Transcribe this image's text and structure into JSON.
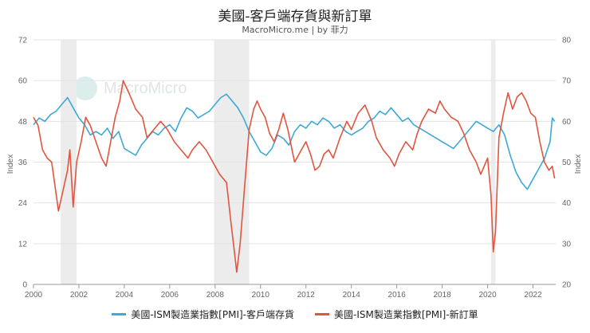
{
  "title": "美國-客戶端存貨與新訂單",
  "subtitle": "MacroMicro.me | by 菲力",
  "watermark": "MacroMicro",
  "chart_data": {
    "type": "line",
    "title": "美國-客戶端存貨與新訂單",
    "ylabel_left": "Index",
    "ylabel_right": "Index",
    "x_range": [
      2000,
      2023
    ],
    "x_ticks": [
      "2000",
      "2002",
      "2004",
      "2006",
      "2008",
      "2010",
      "2012",
      "2014",
      "2016",
      "2018",
      "2020",
      "2022"
    ],
    "y_left_range": [
      0,
      72
    ],
    "y_left_ticks": [
      0,
      12,
      24,
      36,
      48,
      60,
      72
    ],
    "y_right_range": [
      20,
      80
    ],
    "y_right_ticks": [
      20,
      30,
      40,
      50,
      60,
      70,
      80
    ],
    "grid": true,
    "legend_position": "bottom",
    "recession_bands": [
      [
        2001.2,
        2001.9
      ],
      [
        2007.95,
        2009.5
      ],
      [
        2020.15,
        2020.35
      ]
    ],
    "series": [
      {
        "name": "美國-ISM製造業指數[PMI]-客戶端存貨",
        "axis": "left",
        "color": "#3da9d6",
        "points": [
          [
            2000.0,
            47
          ],
          [
            2000.25,
            49
          ],
          [
            2000.5,
            48
          ],
          [
            2000.75,
            50
          ],
          [
            2001.0,
            51
          ],
          [
            2001.25,
            53
          ],
          [
            2001.5,
            55
          ],
          [
            2001.75,
            52
          ],
          [
            2002.0,
            49
          ],
          [
            2002.25,
            47
          ],
          [
            2002.5,
            44
          ],
          [
            2002.75,
            45
          ],
          [
            2003.0,
            44
          ],
          [
            2003.25,
            46
          ],
          [
            2003.5,
            43
          ],
          [
            2003.75,
            45
          ],
          [
            2004.0,
            40
          ],
          [
            2004.25,
            39
          ],
          [
            2004.5,
            38
          ],
          [
            2004.75,
            41
          ],
          [
            2005.0,
            43
          ],
          [
            2005.25,
            45
          ],
          [
            2005.5,
            44
          ],
          [
            2005.75,
            46
          ],
          [
            2006.0,
            47
          ],
          [
            2006.25,
            45
          ],
          [
            2006.5,
            49
          ],
          [
            2006.75,
            52
          ],
          [
            2007.0,
            51
          ],
          [
            2007.25,
            49
          ],
          [
            2007.5,
            50
          ],
          [
            2007.75,
            51
          ],
          [
            2008.0,
            53
          ],
          [
            2008.25,
            55
          ],
          [
            2008.5,
            56
          ],
          [
            2008.75,
            54
          ],
          [
            2009.0,
            52
          ],
          [
            2009.25,
            49
          ],
          [
            2009.5,
            45
          ],
          [
            2009.75,
            42
          ],
          [
            2010.0,
            39
          ],
          [
            2010.25,
            38
          ],
          [
            2010.5,
            40
          ],
          [
            2010.75,
            44
          ],
          [
            2011.0,
            43
          ],
          [
            2011.25,
            41
          ],
          [
            2011.5,
            45
          ],
          [
            2011.75,
            47
          ],
          [
            2012.0,
            46
          ],
          [
            2012.25,
            48
          ],
          [
            2012.5,
            47
          ],
          [
            2012.75,
            49
          ],
          [
            2013.0,
            48
          ],
          [
            2013.25,
            46
          ],
          [
            2013.5,
            47
          ],
          [
            2013.75,
            45
          ],
          [
            2014.0,
            44
          ],
          [
            2014.25,
            45
          ],
          [
            2014.5,
            46
          ],
          [
            2014.75,
            48
          ],
          [
            2015.0,
            49
          ],
          [
            2015.25,
            51
          ],
          [
            2015.5,
            50
          ],
          [
            2015.75,
            52
          ],
          [
            2016.0,
            50
          ],
          [
            2016.25,
            48
          ],
          [
            2016.5,
            49
          ],
          [
            2016.75,
            47
          ],
          [
            2017.0,
            46
          ],
          [
            2017.25,
            45
          ],
          [
            2017.5,
            44
          ],
          [
            2017.75,
            43
          ],
          [
            2018.0,
            42
          ],
          [
            2018.25,
            41
          ],
          [
            2018.5,
            40
          ],
          [
            2018.75,
            42
          ],
          [
            2019.0,
            44
          ],
          [
            2019.25,
            46
          ],
          [
            2019.5,
            48
          ],
          [
            2019.75,
            47
          ],
          [
            2020.0,
            46
          ],
          [
            2020.25,
            45
          ],
          [
            2020.5,
            47
          ],
          [
            2020.75,
            44
          ],
          [
            2021.0,
            38
          ],
          [
            2021.25,
            33
          ],
          [
            2021.5,
            30
          ],
          [
            2021.75,
            28
          ],
          [
            2022.0,
            31
          ],
          [
            2022.25,
            34
          ],
          [
            2022.5,
            37
          ],
          [
            2022.75,
            42
          ],
          [
            2022.85,
            49
          ],
          [
            2022.95,
            48
          ]
        ]
      },
      {
        "name": "美國-ISM製造業指數[PMI]-新訂單",
        "axis": "right",
        "color": "#e0553f",
        "points": [
          [
            2000.0,
            61
          ],
          [
            2000.2,
            59
          ],
          [
            2000.4,
            53
          ],
          [
            2000.6,
            51
          ],
          [
            2000.8,
            50
          ],
          [
            2001.0,
            42
          ],
          [
            2001.1,
            38
          ],
          [
            2001.3,
            43
          ],
          [
            2001.5,
            48
          ],
          [
            2001.6,
            53
          ],
          [
            2001.75,
            39
          ],
          [
            2001.9,
            50
          ],
          [
            2002.1,
            55
          ],
          [
            2002.3,
            61
          ],
          [
            2002.5,
            59
          ],
          [
            2002.75,
            55
          ],
          [
            2003.0,
            51
          ],
          [
            2003.2,
            49
          ],
          [
            2003.4,
            55
          ],
          [
            2003.6,
            61
          ],
          [
            2003.8,
            65
          ],
          [
            2003.95,
            70
          ],
          [
            2004.2,
            67
          ],
          [
            2004.5,
            63
          ],
          [
            2004.8,
            61
          ],
          [
            2005.0,
            56
          ],
          [
            2005.3,
            58
          ],
          [
            2005.6,
            60
          ],
          [
            2005.9,
            58
          ],
          [
            2006.2,
            55
          ],
          [
            2006.5,
            53
          ],
          [
            2006.8,
            51
          ],
          [
            2007.0,
            53
          ],
          [
            2007.3,
            55
          ],
          [
            2007.6,
            53
          ],
          [
            2007.9,
            50
          ],
          [
            2008.2,
            47
          ],
          [
            2008.5,
            45
          ],
          [
            2008.7,
            35
          ],
          [
            2008.85,
            28
          ],
          [
            2008.95,
            23
          ],
          [
            2009.1,
            30
          ],
          [
            2009.3,
            44
          ],
          [
            2009.5,
            58
          ],
          [
            2009.7,
            63
          ],
          [
            2009.85,
            65
          ],
          [
            2010.0,
            63
          ],
          [
            2010.2,
            61
          ],
          [
            2010.4,
            57
          ],
          [
            2010.6,
            55
          ],
          [
            2010.8,
            58
          ],
          [
            2011.0,
            62
          ],
          [
            2011.2,
            58
          ],
          [
            2011.5,
            50
          ],
          [
            2011.8,
            53
          ],
          [
            2012.0,
            55
          ],
          [
            2012.2,
            52
          ],
          [
            2012.4,
            48
          ],
          [
            2012.6,
            49
          ],
          [
            2012.8,
            52
          ],
          [
            2013.0,
            53
          ],
          [
            2013.2,
            51
          ],
          [
            2013.5,
            56
          ],
          [
            2013.8,
            60
          ],
          [
            2014.0,
            58
          ],
          [
            2014.3,
            62
          ],
          [
            2014.6,
            64
          ],
          [
            2014.9,
            60
          ],
          [
            2015.1,
            56
          ],
          [
            2015.4,
            53
          ],
          [
            2015.7,
            51
          ],
          [
            2015.9,
            49
          ],
          [
            2016.1,
            52
          ],
          [
            2016.4,
            55
          ],
          [
            2016.7,
            53
          ],
          [
            2016.9,
            57
          ],
          [
            2017.1,
            60
          ],
          [
            2017.4,
            63
          ],
          [
            2017.7,
            62
          ],
          [
            2017.9,
            65
          ],
          [
            2018.1,
            63
          ],
          [
            2018.4,
            61
          ],
          [
            2018.7,
            60
          ],
          [
            2018.95,
            57
          ],
          [
            2019.2,
            53
          ],
          [
            2019.5,
            50
          ],
          [
            2019.7,
            47
          ],
          [
            2019.85,
            49
          ],
          [
            2020.0,
            51
          ],
          [
            2020.15,
            42
          ],
          [
            2020.25,
            28
          ],
          [
            2020.35,
            33
          ],
          [
            2020.5,
            56
          ],
          [
            2020.7,
            62
          ],
          [
            2020.9,
            67
          ],
          [
            2021.1,
            63
          ],
          [
            2021.3,
            66
          ],
          [
            2021.5,
            67
          ],
          [
            2021.7,
            65
          ],
          [
            2021.9,
            62
          ],
          [
            2022.1,
            61
          ],
          [
            2022.3,
            55
          ],
          [
            2022.5,
            50
          ],
          [
            2022.7,
            48
          ],
          [
            2022.85,
            49
          ],
          [
            2022.95,
            46
          ]
        ]
      }
    ]
  }
}
